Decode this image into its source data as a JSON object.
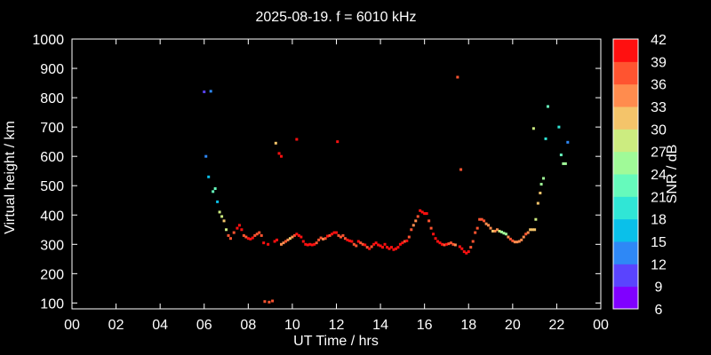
{
  "chart_data": {
    "type": "scatter",
    "title": "2025-08-19. f = 6010 kHz",
    "xlabel": "UT Time / hrs",
    "ylabel": "Virtual height / km",
    "xlim": [
      0,
      24
    ],
    "ylim": [
      80,
      1000
    ],
    "xticks": [
      "00",
      "02",
      "04",
      "06",
      "08",
      "10",
      "12",
      "14",
      "16",
      "18",
      "20",
      "22",
      "00"
    ],
    "yticks": [
      100,
      200,
      300,
      400,
      500,
      600,
      700,
      800,
      900,
      1000
    ],
    "grid": false,
    "colorbar": {
      "label": "SNR / dB",
      "ticks": [
        6,
        9,
        12,
        15,
        18,
        21,
        24,
        27,
        30,
        33,
        36,
        39,
        42
      ],
      "range": [
        6,
        42
      ],
      "colors": [
        "#8000ff",
        "#5a44fe",
        "#2e88f6",
        "#0ac0ea",
        "#30e6d6",
        "#66fabc",
        "#a0fa98",
        "#ccec80",
        "#f4c46a",
        "#ff8c4e",
        "#ff5430",
        "#ff1010"
      ]
    },
    "series": [
      {
        "points": [
          [
            6.0,
            820,
            9
          ],
          [
            6.3,
            822,
            12
          ],
          [
            6.08,
            600,
            12
          ],
          [
            6.2,
            530,
            15
          ],
          [
            6.4,
            480,
            21
          ],
          [
            6.5,
            490,
            21
          ],
          [
            6.6,
            445,
            15
          ],
          [
            6.7,
            410,
            27
          ],
          [
            6.8,
            395,
            27
          ],
          [
            6.9,
            380,
            30
          ],
          [
            7.0,
            350,
            27
          ],
          [
            7.1,
            330,
            36
          ],
          [
            7.2,
            320,
            36
          ],
          [
            7.35,
            340,
            36
          ],
          [
            7.5,
            355,
            39
          ],
          [
            7.6,
            365,
            39
          ],
          [
            7.7,
            350,
            39
          ],
          [
            7.8,
            330,
            36
          ],
          [
            7.9,
            325,
            36
          ],
          [
            8.0,
            320,
            39
          ],
          [
            8.1,
            318,
            39
          ],
          [
            8.2,
            322,
            39
          ],
          [
            8.3,
            330,
            36
          ],
          [
            8.4,
            335,
            36
          ],
          [
            8.5,
            340,
            36
          ],
          [
            8.6,
            330,
            36
          ],
          [
            8.7,
            305,
            42
          ],
          [
            8.75,
            105,
            36
          ],
          [
            8.9,
            300,
            39
          ],
          [
            8.95,
            103,
            36
          ],
          [
            9.1,
            107,
            36
          ],
          [
            9.2,
            310,
            39
          ],
          [
            9.3,
            315,
            39
          ],
          [
            9.25,
            645,
            30
          ],
          [
            9.4,
            610,
            39
          ],
          [
            9.5,
            600,
            39
          ],
          [
            9.5,
            300,
            33
          ],
          [
            9.6,
            305,
            33
          ],
          [
            9.7,
            310,
            36
          ],
          [
            9.8,
            315,
            33
          ],
          [
            9.9,
            320,
            30
          ],
          [
            10.0,
            325,
            33
          ],
          [
            10.1,
            330,
            36
          ],
          [
            10.2,
            658,
            39
          ],
          [
            10.2,
            335,
            39
          ],
          [
            10.3,
            330,
            39
          ],
          [
            10.4,
            325,
            39
          ],
          [
            10.5,
            310,
            39
          ],
          [
            10.6,
            300,
            39
          ],
          [
            10.7,
            298,
            39
          ],
          [
            10.8,
            300,
            39
          ],
          [
            10.9,
            298,
            39
          ],
          [
            11.0,
            300,
            39
          ],
          [
            11.1,
            305,
            36
          ],
          [
            11.2,
            315,
            36
          ],
          [
            11.3,
            322,
            36
          ],
          [
            11.4,
            318,
            33
          ],
          [
            11.5,
            320,
            36
          ],
          [
            11.6,
            328,
            39
          ],
          [
            11.7,
            330,
            36
          ],
          [
            11.8,
            335,
            39
          ],
          [
            11.9,
            340,
            39
          ],
          [
            12.05,
            650,
            42
          ],
          [
            12.0,
            340,
            39
          ],
          [
            12.1,
            330,
            36
          ],
          [
            12.2,
            325,
            36
          ],
          [
            12.3,
            330,
            36
          ],
          [
            12.4,
            320,
            36
          ],
          [
            12.5,
            315,
            39
          ],
          [
            12.6,
            312,
            39
          ],
          [
            12.7,
            310,
            39
          ],
          [
            12.8,
            300,
            36
          ],
          [
            12.9,
            295,
            36
          ],
          [
            13.0,
            310,
            39
          ],
          [
            13.1,
            305,
            36
          ],
          [
            13.2,
            300,
            36
          ],
          [
            13.3,
            298,
            39
          ],
          [
            13.4,
            290,
            36
          ],
          [
            13.5,
            285,
            39
          ],
          [
            13.6,
            292,
            36
          ],
          [
            13.7,
            300,
            39
          ],
          [
            13.8,
            305,
            39
          ],
          [
            13.9,
            298,
            39
          ],
          [
            14.0,
            295,
            39
          ],
          [
            14.1,
            290,
            39
          ],
          [
            14.2,
            300,
            39
          ],
          [
            14.3,
            290,
            39
          ],
          [
            14.4,
            285,
            39
          ],
          [
            14.5,
            290,
            39
          ],
          [
            14.6,
            282,
            39
          ],
          [
            14.7,
            285,
            39
          ],
          [
            14.8,
            290,
            39
          ],
          [
            14.9,
            300,
            39
          ],
          [
            15.0,
            305,
            39
          ],
          [
            15.1,
            310,
            36
          ],
          [
            15.2,
            312,
            39
          ],
          [
            15.3,
            325,
            36
          ],
          [
            15.4,
            350,
            36
          ],
          [
            15.5,
            365,
            33
          ],
          [
            15.6,
            380,
            33
          ],
          [
            15.7,
            395,
            36
          ],
          [
            15.8,
            415,
            39
          ],
          [
            15.9,
            410,
            39
          ],
          [
            16.0,
            405,
            39
          ],
          [
            16.1,
            405,
            39
          ],
          [
            16.2,
            380,
            36
          ],
          [
            16.3,
            355,
            36
          ],
          [
            16.4,
            335,
            39
          ],
          [
            16.5,
            320,
            39
          ],
          [
            16.6,
            310,
            39
          ],
          [
            16.7,
            305,
            39
          ],
          [
            16.8,
            300,
            39
          ],
          [
            16.9,
            298,
            36
          ],
          [
            17.0,
            300,
            39
          ],
          [
            17.1,
            302,
            36
          ],
          [
            17.2,
            305,
            36
          ],
          [
            17.3,
            300,
            36
          ],
          [
            17.4,
            298,
            33
          ],
          [
            17.5,
            870,
            36
          ],
          [
            17.6,
            292,
            39
          ],
          [
            17.65,
            555,
            36
          ],
          [
            17.7,
            285,
            39
          ],
          [
            17.8,
            275,
            39
          ],
          [
            17.9,
            270,
            39
          ],
          [
            18.0,
            275,
            39
          ],
          [
            18.1,
            290,
            36
          ],
          [
            18.2,
            310,
            36
          ],
          [
            18.3,
            340,
            36
          ],
          [
            18.4,
            355,
            36
          ],
          [
            18.5,
            385,
            36
          ],
          [
            18.6,
            385,
            36
          ],
          [
            18.7,
            380,
            36
          ],
          [
            18.8,
            370,
            33
          ],
          [
            18.9,
            365,
            33
          ],
          [
            19.0,
            355,
            33
          ],
          [
            19.1,
            345,
            30
          ],
          [
            19.2,
            345,
            33
          ],
          [
            19.3,
            350,
            33
          ],
          [
            19.4,
            345,
            27
          ],
          [
            19.5,
            342,
            24
          ],
          [
            19.6,
            338,
            24
          ],
          [
            19.7,
            335,
            24
          ],
          [
            19.8,
            325,
            33
          ],
          [
            19.9,
            318,
            36
          ],
          [
            20.0,
            312,
            36
          ],
          [
            20.1,
            308,
            33
          ],
          [
            20.2,
            308,
            33
          ],
          [
            20.3,
            310,
            33
          ],
          [
            20.4,
            315,
            33
          ],
          [
            20.5,
            325,
            33
          ],
          [
            20.6,
            335,
            36
          ],
          [
            20.7,
            340,
            33
          ],
          [
            20.8,
            350,
            30
          ],
          [
            20.9,
            350,
            30
          ],
          [
            21.0,
            350,
            30
          ],
          [
            20.95,
            695,
            27
          ],
          [
            21.05,
            385,
            27
          ],
          [
            21.15,
            440,
            30
          ],
          [
            21.25,
            475,
            30
          ],
          [
            21.3,
            505,
            24
          ],
          [
            21.4,
            525,
            24
          ],
          [
            21.5,
            660,
            18
          ],
          [
            21.6,
            770,
            21
          ],
          [
            22.1,
            700,
            18
          ],
          [
            22.2,
            605,
            21
          ],
          [
            22.3,
            575,
            24
          ],
          [
            22.4,
            575,
            24
          ],
          [
            22.5,
            648,
            12
          ]
        ]
      }
    ]
  }
}
